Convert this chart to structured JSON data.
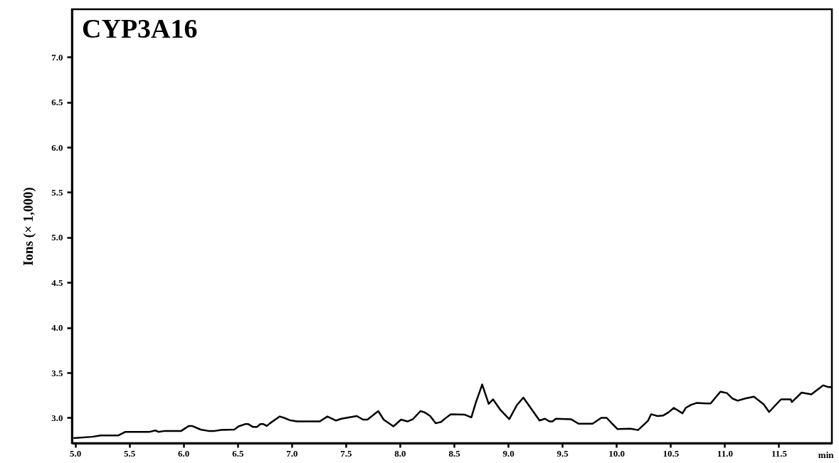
{
  "chart_data": {
    "type": "line",
    "title": "CYP3A16",
    "xlabel": "min",
    "ylabel": "Ions (× 1,000)",
    "xlim": [
      4.97,
      11.99
    ],
    "ylim": [
      2.72,
      7.53
    ],
    "xticks": [
      {
        "value": 5,
        "label": "5.0"
      },
      5.5,
      {
        "value": 6,
        "label": "6.0"
      },
      6.5,
      {
        "value": 7,
        "label": "7.0"
      },
      7.5,
      {
        "value": 8,
        "label": "8.0"
      },
      8.5,
      {
        "value": 9,
        "label": "9.0"
      },
      9.5,
      {
        "value": 10,
        "label": "10.0"
      },
      10.5,
      {
        "value": 11,
        "label": "11.0"
      },
      11.5
    ],
    "yticks": [
      {
        "value": 3,
        "label": "3.0"
      },
      3.5,
      {
        "value": 4,
        "label": "4.0"
      },
      4.5,
      {
        "value": 5,
        "label": "5.0"
      },
      5.5,
      {
        "value": 6,
        "label": "6.0"
      },
      6.5,
      {
        "value": 7,
        "label": "7.0"
      }
    ],
    "grid": false,
    "marker": "none",
    "line_style": "solid",
    "series": [
      {
        "color": "#000000",
        "x": [
          4.985,
          5.16,
          5.236,
          5.4,
          5.465,
          5.69,
          5.74,
          5.77,
          5.83,
          5.98,
          6.05,
          6.08,
          6.16,
          6.23,
          6.29,
          6.35,
          6.47,
          6.51,
          6.57,
          6.6,
          6.64,
          6.68,
          6.71,
          6.74,
          6.77,
          6.8,
          6.89,
          6.93,
          6.98,
          7.05,
          7.26,
          7.33,
          7.41,
          7.46,
          7.6,
          7.66,
          7.7,
          7.8,
          7.85,
          7.94,
          8.01,
          8.07,
          8.12,
          8.19,
          8.23,
          8.28,
          8.33,
          8.38,
          8.42,
          8.47,
          8.6,
          8.66,
          8.7,
          8.76,
          8.82,
          8.86,
          8.93,
          9.01,
          9.08,
          9.14,
          9.29,
          9.34,
          9.38,
          9.41,
          9.44,
          9.58,
          9.65,
          9.78,
          9.86,
          9.91,
          9.96,
          10.01,
          10.13,
          10.2,
          10.29,
          10.32,
          10.38,
          10.43,
          10.48,
          10.53,
          10.61,
          10.64,
          10.69,
          10.74,
          10.83,
          10.87,
          10.96,
          11.02,
          11.07,
          11.12,
          11.19,
          11.27,
          11.36,
          11.41,
          11.52,
          11.61,
          11.62,
          11.71,
          11.8,
          11.91,
          11.96,
          11.99
        ],
        "values": [
          2.776,
          2.79,
          2.805,
          2.805,
          2.845,
          2.845,
          2.86,
          2.845,
          2.855,
          2.855,
          2.91,
          2.91,
          2.87,
          2.855,
          2.855,
          2.865,
          2.87,
          2.905,
          2.93,
          2.93,
          2.9,
          2.9,
          2.93,
          2.93,
          2.91,
          2.94,
          3.015,
          3.0,
          2.975,
          2.96,
          2.96,
          3.015,
          2.97,
          2.99,
          3.02,
          2.98,
          2.98,
          3.075,
          2.98,
          2.905,
          2.98,
          2.96,
          2.985,
          3.075,
          3.06,
          3.02,
          2.94,
          2.955,
          2.995,
          3.04,
          3.035,
          3.005,
          3.165,
          3.37,
          3.155,
          3.205,
          3.085,
          2.985,
          3.14,
          3.225,
          2.97,
          2.99,
          2.96,
          2.96,
          2.99,
          2.985,
          2.935,
          2.935,
          3.0,
          3.0,
          2.935,
          2.875,
          2.88,
          2.865,
          2.965,
          3.04,
          3.02,
          3.025,
          3.06,
          3.11,
          3.05,
          3.11,
          3.145,
          3.165,
          3.16,
          3.16,
          3.29,
          3.275,
          3.215,
          3.19,
          3.215,
          3.235,
          3.15,
          3.065,
          3.205,
          3.205,
          3.175,
          3.28,
          3.26,
          3.36,
          3.34,
          3.34
        ]
      }
    ]
  }
}
